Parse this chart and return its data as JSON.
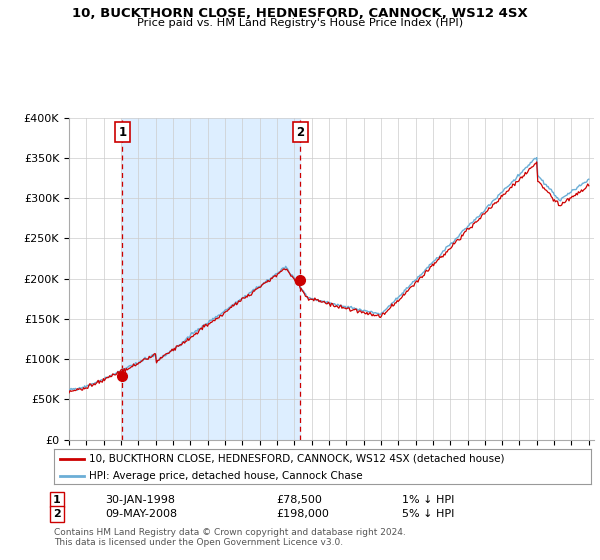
{
  "title": "10, BUCKTHORN CLOSE, HEDNESFORD, CANNOCK, WS12 4SX",
  "subtitle": "Price paid vs. HM Land Registry's House Price Index (HPI)",
  "ylim": [
    0,
    400000
  ],
  "xlim_start": 1995.0,
  "xlim_end": 2025.3,
  "hpi_color": "#6baed6",
  "price_color": "#cc0000",
  "shade_color": "#ddeeff",
  "grid_color": "#cccccc",
  "bg_color": "#ffffff",
  "transaction1_x": 1998.08,
  "transaction1_y": 78500,
  "transaction1_label": "1",
  "transaction1_date": "30-JAN-1998",
  "transaction1_price": "£78,500",
  "transaction1_hpi": "1% ↓ HPI",
  "transaction2_x": 2008.36,
  "transaction2_y": 198000,
  "transaction2_label": "2",
  "transaction2_date": "09-MAY-2008",
  "transaction2_price": "£198,000",
  "transaction2_hpi": "5% ↓ HPI",
  "legend_line1": "10, BUCKTHORN CLOSE, HEDNESFORD, CANNOCK, WS12 4SX (detached house)",
  "legend_line2": "HPI: Average price, detached house, Cannock Chase",
  "footer": "Contains HM Land Registry data © Crown copyright and database right 2024.\nThis data is licensed under the Open Government Licence v3.0.",
  "yticks": [
    0,
    50000,
    100000,
    150000,
    200000,
    250000,
    300000,
    350000,
    400000
  ],
  "ytick_labels": [
    "£0",
    "£50K",
    "£100K",
    "£150K",
    "£200K",
    "£250K",
    "£300K",
    "£350K",
    "£400K"
  ]
}
